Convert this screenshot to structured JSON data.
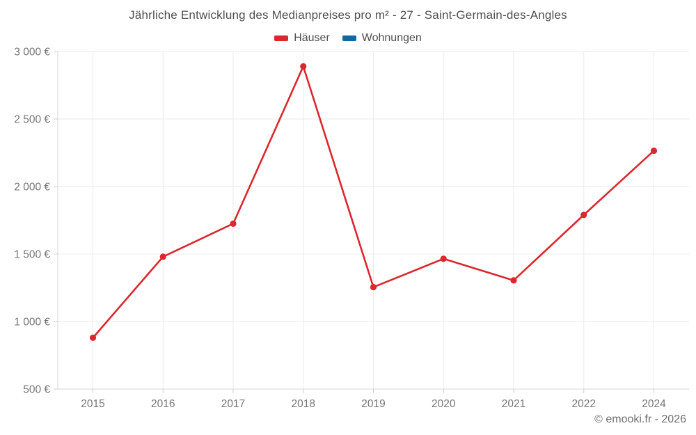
{
  "title": "Jährliche Entwicklung des Medianpreises pro m² - 27 - Saint-Germain-des-Angles",
  "legend": {
    "items": [
      {
        "label": "Häuser",
        "color": "#d9282e"
      },
      {
        "label": "Wohnungen",
        "color": "#1269a2"
      }
    ]
  },
  "watermark": "© emooki.fr - 2026",
  "colors": {
    "background": "#ffffff",
    "title_text": "#4f4f4f",
    "axis_text": "#767676",
    "gridline": "#ebebeb",
    "axis_line": "#d6d6d6",
    "tick": "#cccccc",
    "houses_red": "#d9282e",
    "apartments_blue": "#1269a2"
  },
  "chart_data": {
    "type": "line",
    "title": "Jährliche Entwicklung des Medianpreises pro m² - 27 - Saint-Germain-des-Angles",
    "categories": [
      "2015",
      "2016",
      "2017",
      "2018",
      "2019",
      "2020",
      "2021",
      "2022",
      "2024"
    ],
    "series": [
      {
        "name": "Häuser",
        "color": "#d9282e",
        "values": [
          880,
          1480,
          1725,
          2890,
          1255,
          1465,
          1305,
          1790,
          2265
        ]
      },
      {
        "name": "Wohnungen",
        "color": "#1269a2",
        "values": []
      }
    ],
    "xlabel": "",
    "ylabel": "",
    "ylim": [
      500,
      3000
    ],
    "ytick_step": 500,
    "yticks": [
      500,
      1000,
      1500,
      2000,
      2500,
      3000
    ],
    "ytick_labels": [
      "500 €",
      "1 000 €",
      "1 500 €",
      "2 000 €",
      "2 500 €",
      "3 000 €"
    ],
    "grid": true,
    "legend_position": "top",
    "marker": "circle"
  }
}
